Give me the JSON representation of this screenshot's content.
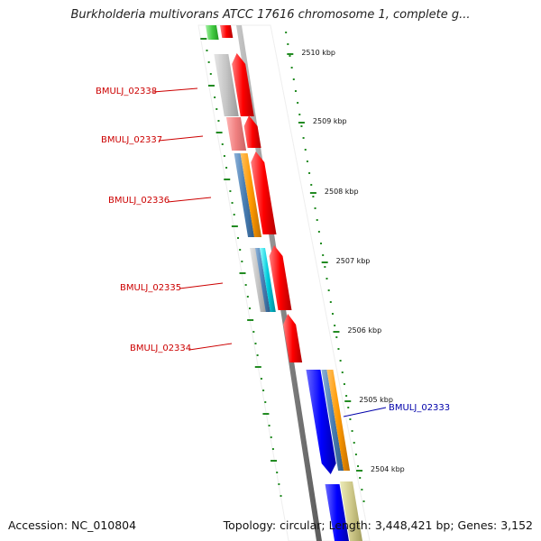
{
  "title": "Burkholderia multivorans ATCC 17616 chromosome 1, complete g...",
  "footer": {
    "accession": "Accession: NC_010804",
    "summary": "Topology: circular; Length: 3,448,421 bp; Genes: 3,152"
  },
  "ticks": [
    "2510 kbp",
    "2509 kbp",
    "2508 kbp",
    "2507 kbp",
    "2506 kbp",
    "2505 kbp",
    "2504 kbp"
  ],
  "gene_labels": [
    {
      "name": "BMULJ_02338",
      "color": "#cc0000"
    },
    {
      "name": "BMULJ_02337",
      "color": "#cc0000"
    },
    {
      "name": "BMULJ_02336",
      "color": "#cc0000"
    },
    {
      "name": "BMULJ_02335",
      "color": "#cc0000"
    },
    {
      "name": "BMULJ_02334",
      "color": "#cc0000"
    },
    {
      "name": "BMULJ_02333",
      "color": "#0000aa"
    }
  ],
  "colors": {
    "forward_gene": "#ff0000",
    "reverse_gene": "#0000ee",
    "backbone": "#808080",
    "tick": "#228b22"
  }
}
